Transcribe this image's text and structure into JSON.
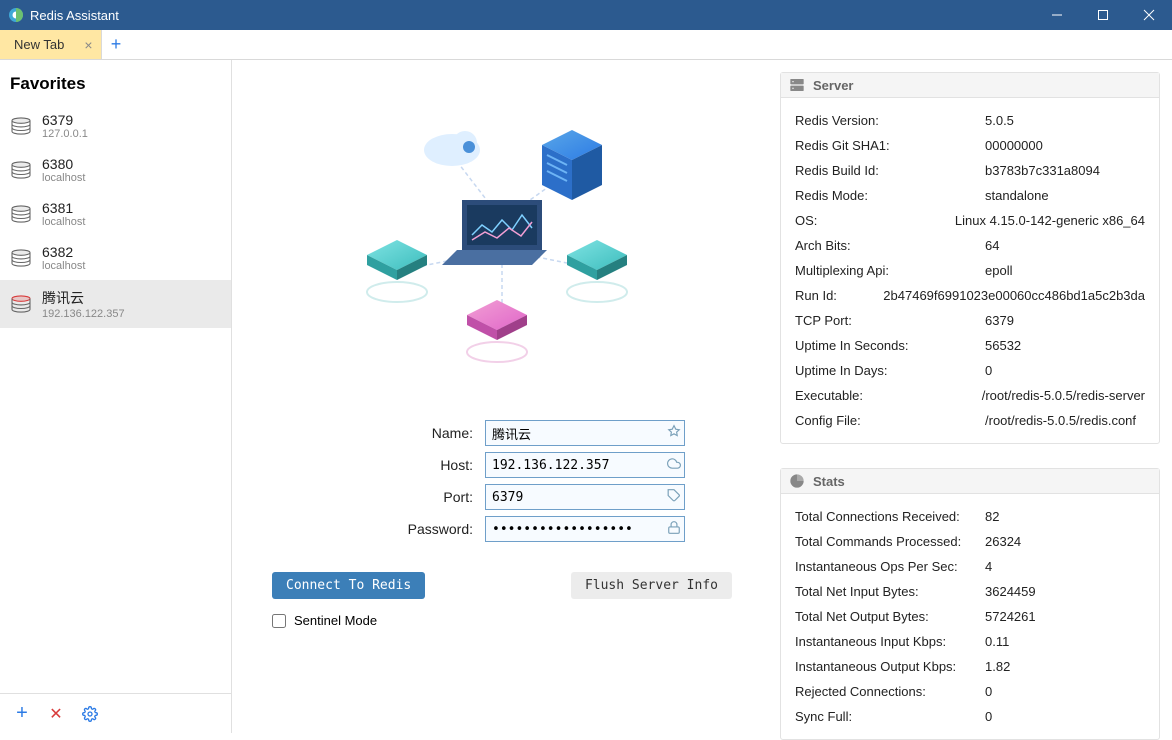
{
  "window": {
    "title": "Redis Assistant"
  },
  "tabs": {
    "active_label": "New Tab"
  },
  "sidebar": {
    "title": "Favorites",
    "items": [
      {
        "port": "6379",
        "host": "127.0.0.1",
        "selected": false
      },
      {
        "port": "6380",
        "host": "localhost",
        "selected": false
      },
      {
        "port": "6381",
        "host": "localhost",
        "selected": false
      },
      {
        "port": "6382",
        "host": "localhost",
        "selected": false
      },
      {
        "port": "腾讯云",
        "host": "192.136.122.357",
        "selected": true
      }
    ]
  },
  "form": {
    "name_label": "Name:",
    "name_value": "腾讯云",
    "host_label": "Host:",
    "host_value": "192.136.122.357",
    "port_label": "Port:",
    "port_value": "6379",
    "password_label": "Password:",
    "password_value": "••••••••••••••••••",
    "connect_btn": "Connect To Redis",
    "flush_btn": "Flush Server Info",
    "sentinel_label": "Sentinel Mode",
    "sentinel_checked": false
  },
  "server_panel": {
    "title": "Server",
    "rows": [
      {
        "k": "Redis Version:",
        "v": "5.0.5"
      },
      {
        "k": "Redis Git SHA1:",
        "v": "00000000"
      },
      {
        "k": "Redis Build Id:",
        "v": "b3783b7c331a8094"
      },
      {
        "k": "Redis Mode:",
        "v": "standalone"
      },
      {
        "k": "OS:",
        "v": "Linux 4.15.0-142-generic x86_64"
      },
      {
        "k": "Arch Bits:",
        "v": "64"
      },
      {
        "k": "Multiplexing Api:",
        "v": "epoll"
      },
      {
        "k": "Run Id:",
        "v": "2b47469f6991023e00060cc486bd1a5c2b3da"
      },
      {
        "k": "TCP Port:",
        "v": "6379"
      },
      {
        "k": "Uptime In Seconds:",
        "v": "56532"
      },
      {
        "k": "Uptime In Days:",
        "v": "0"
      },
      {
        "k": "Executable:",
        "v": "/root/redis-5.0.5/redis-server"
      },
      {
        "k": "Config File:",
        "v": "/root/redis-5.0.5/redis.conf"
      }
    ]
  },
  "stats_panel": {
    "title": "Stats",
    "rows": [
      {
        "k": "Total Connections Received:",
        "v": "82"
      },
      {
        "k": "Total Commands Processed:",
        "v": "26324"
      },
      {
        "k": "Instantaneous Ops Per Sec:",
        "v": "4"
      },
      {
        "k": "Total Net Input Bytes:",
        "v": "3624459"
      },
      {
        "k": "Total Net Output Bytes:",
        "v": "5724261"
      },
      {
        "k": "Instantaneous Input Kbps:",
        "v": "0.11"
      },
      {
        "k": "Instantaneous Output Kbps:",
        "v": "1.82"
      },
      {
        "k": "Rejected Connections:",
        "v": "0"
      },
      {
        "k": "Sync Full:",
        "v": "0"
      }
    ]
  },
  "colors": {
    "titlebar": "#2c5a8f",
    "tab_active": "#ffe7a3",
    "primary_btn": "#3c7fb8",
    "input_border": "#6f9fc9",
    "selected_icon": "#d93c3c"
  }
}
